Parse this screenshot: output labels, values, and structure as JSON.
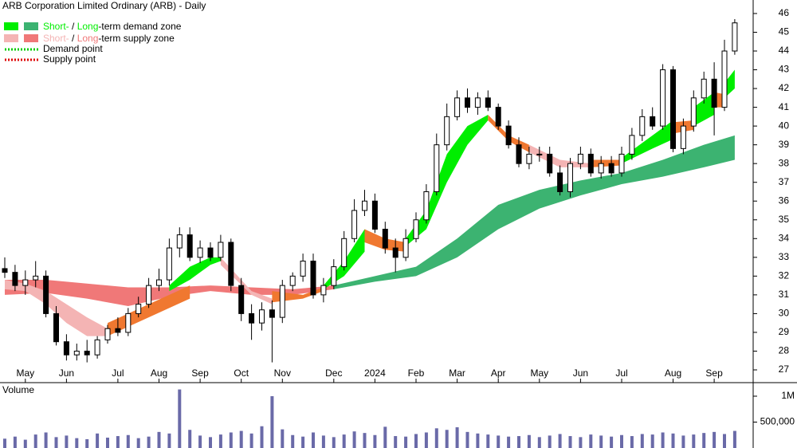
{
  "chart_data": {
    "type": "candlestick",
    "title": "ARB Corporation Limited Ordinary (ARB) - Daily",
    "legend": {
      "demand": {
        "short": "Short-",
        "sep": " / ",
        "long": "Long",
        "rest": "-term demand zone",
        "short_color": "#00ee00",
        "long_color": "#3cb371"
      },
      "supply": {
        "short": "Short-",
        "sep": " / ",
        "long": "Long",
        "rest": "-term supply zone",
        "short_color": "#f4b4b4",
        "long_color": "#f07878"
      },
      "demand_point": {
        "label": "Demand point",
        "color": "#00cc00"
      },
      "supply_point": {
        "label": "Supply point",
        "color": "#dd0000"
      }
    },
    "categories": [
      null,
      null,
      "May",
      null,
      null,
      null,
      "Jun",
      null,
      null,
      null,
      null,
      "Jul",
      null,
      null,
      null,
      "Aug",
      null,
      null,
      null,
      "Sep",
      null,
      null,
      null,
      "Oct",
      null,
      null,
      null,
      "Nov",
      null,
      null,
      null,
      null,
      "Dec",
      null,
      null,
      null,
      "2024",
      null,
      null,
      null,
      "Feb",
      null,
      null,
      null,
      "Mar",
      null,
      null,
      null,
      "Apr",
      null,
      null,
      null,
      "May",
      null,
      null,
      null,
      "Jun",
      null,
      null,
      null,
      "Jul",
      null,
      null,
      null,
      null,
      "Aug",
      null,
      null,
      null,
      "Sep",
      null,
      null
    ],
    "open": [
      32.4,
      32.2,
      31.5,
      31.8,
      32.0,
      30.0,
      28.5,
      27.8,
      28.0,
      27.8,
      28.6,
      29.2,
      29.0,
      30.0,
      30.5,
      31.5,
      31.8,
      33.5,
      34.2,
      33.0,
      33.5,
      33.0,
      33.8,
      31.5,
      30.0,
      29.5,
      30.2,
      29.8,
      31.5,
      32.0,
      32.8,
      31.0,
      31.5,
      32.5,
      34.0,
      35.5,
      36.0,
      34.5,
      33.5,
      33.0,
      34.0,
      35.0,
      36.5,
      39.0,
      40.5,
      41.5,
      41.0,
      41.5,
      41.0,
      40.0,
      39.0,
      38.0,
      38.5,
      38.5,
      37.5,
      36.5,
      38.0,
      38.5,
      37.5,
      38.0,
      37.5,
      38.5,
      39.5,
      40.5,
      40.0,
      43.0,
      38.8,
      40.0,
      41.5,
      42.5,
      41.0,
      44.0
    ],
    "high": [
      33.0,
      32.6,
      32.3,
      32.8,
      32.3,
      30.4,
      28.9,
      28.4,
      28.6,
      28.8,
      29.4,
      29.8,
      30.3,
      30.9,
      31.9,
      32.4,
      34.0,
      34.6,
      34.6,
      33.9,
      33.8,
      34.2,
      34.0,
      31.9,
      30.5,
      30.6,
      30.7,
      31.8,
      32.2,
      33.2,
      33.2,
      31.9,
      32.9,
      34.4,
      36.1,
      36.6,
      36.4,
      34.9,
      34.0,
      34.5,
      35.4,
      36.9,
      39.6,
      41.2,
      41.9,
      42.0,
      41.8,
      41.9,
      41.2,
      40.3,
      39.4,
      38.9,
      38.9,
      38.9,
      37.9,
      38.3,
      38.9,
      38.8,
      38.4,
      38.4,
      38.9,
      39.9,
      40.9,
      41.0,
      43.3,
      43.2,
      40.4,
      41.9,
      42.9,
      43.4,
      44.6,
      45.7
    ],
    "low": [
      31.9,
      31.2,
      31.0,
      31.4,
      29.8,
      28.3,
      27.5,
      27.5,
      27.4,
      27.6,
      28.4,
      28.8,
      28.8,
      29.8,
      30.3,
      31.2,
      31.5,
      33.0,
      32.8,
      32.7,
      32.8,
      32.8,
      31.2,
      29.6,
      28.6,
      29.1,
      27.4,
      29.5,
      31.2,
      31.7,
      30.8,
      30.6,
      31.3,
      32.3,
      33.8,
      35.2,
      34.3,
      33.2,
      32.2,
      32.8,
      33.8,
      34.8,
      36.3,
      38.7,
      40.3,
      40.7,
      40.6,
      40.8,
      39.8,
      38.8,
      37.8,
      37.7,
      38.1,
      37.3,
      36.3,
      36.2,
      37.7,
      37.3,
      37.2,
      37.3,
      37.3,
      38.2,
      39.2,
      39.8,
      39.8,
      38.6,
      38.5,
      39.7,
      41.2,
      39.5,
      40.8,
      43.8
    ],
    "close": [
      32.2,
      31.5,
      31.8,
      32.0,
      30.0,
      28.5,
      27.8,
      28.0,
      27.8,
      28.6,
      29.2,
      29.0,
      30.0,
      30.5,
      31.5,
      31.8,
      33.5,
      34.2,
      33.0,
      33.5,
      33.0,
      33.8,
      31.5,
      30.0,
      29.5,
      30.2,
      29.8,
      31.5,
      32.0,
      32.8,
      31.0,
      31.5,
      32.5,
      34.0,
      35.5,
      36.0,
      34.5,
      33.5,
      33.0,
      34.0,
      35.0,
      36.5,
      39.0,
      40.5,
      41.5,
      41.0,
      41.5,
      41.0,
      40.0,
      39.0,
      38.0,
      38.5,
      38.5,
      37.5,
      36.5,
      38.0,
      38.5,
      37.5,
      38.0,
      37.5,
      38.5,
      39.5,
      40.5,
      40.0,
      43.0,
      38.8,
      40.0,
      41.5,
      42.5,
      41.0,
      44.0,
      45.5
    ],
    "ylim": [
      26.32,
      46.72
    ],
    "yticks": [
      27,
      28,
      29,
      30,
      31,
      32,
      33,
      34,
      35,
      36,
      37,
      38,
      39,
      40,
      41,
      42,
      43,
      44,
      45,
      46
    ],
    "zones": [
      {
        "color": "#f07878",
        "x": [
          0,
          4,
          8,
          12,
          16,
          20,
          24,
          28,
          32
        ],
        "upper": [
          31.8,
          31.8,
          31.6,
          31.4,
          31.4,
          31.5,
          31.4,
          31.3,
          31.5
        ],
        "lower": [
          31.0,
          31.1,
          30.8,
          30.4,
          30.9,
          31.2,
          31.0,
          31.0,
          31.3
        ]
      },
      {
        "color": "#3cb371",
        "x": [
          32,
          36,
          40,
          44,
          48,
          52,
          56,
          60,
          64,
          68,
          71
        ],
        "upper": [
          31.5,
          32.0,
          32.5,
          34.0,
          35.8,
          36.6,
          37.1,
          37.5,
          38.2,
          39.0,
          39.5
        ],
        "lower": [
          31.3,
          31.7,
          32.0,
          33.0,
          34.5,
          35.6,
          36.3,
          36.9,
          37.3,
          37.8,
          38.2
        ]
      },
      {
        "color": "#f4b4b4",
        "x": [
          0,
          2,
          4,
          6,
          8,
          10
        ],
        "upper": [
          31.8,
          31.6,
          31.2,
          30.5,
          29.8,
          29.2
        ],
        "lower": [
          31.3,
          31.2,
          30.5,
          29.5,
          28.8,
          28.8
        ]
      },
      {
        "color": "#f07830",
        "x": [
          10,
          14,
          18
        ],
        "upper": [
          29.5,
          30.5,
          31.5
        ],
        "lower": [
          28.8,
          29.8,
          30.8
        ]
      },
      {
        "color": "#00ee00",
        "x": [
          16,
          18,
          20,
          21
        ],
        "upper": [
          31.5,
          32.5,
          33.0,
          33.0
        ],
        "lower": [
          31.2,
          31.8,
          32.6,
          32.8
        ]
      },
      {
        "color": "#f4b4b4",
        "x": [
          21,
          24,
          26
        ],
        "upper": [
          33.0,
          31.2,
          30.8
        ],
        "lower": [
          32.6,
          31.0,
          30.5
        ]
      },
      {
        "color": "#f07830",
        "x": [
          26,
          29,
          31
        ],
        "upper": [
          31.2,
          31.0,
          31.4
        ],
        "lower": [
          30.6,
          30.8,
          31.2
        ]
      },
      {
        "color": "#00ee00",
        "x": [
          31,
          33,
          35
        ],
        "upper": [
          31.5,
          32.8,
          34.5
        ],
        "lower": [
          31.3,
          32.0,
          33.3
        ]
      },
      {
        "color": "#f07830",
        "x": [
          35,
          37,
          39
        ],
        "upper": [
          34.5,
          34.0,
          33.8
        ],
        "lower": [
          33.8,
          33.4,
          33.3
        ]
      },
      {
        "color": "#00ee00",
        "x": [
          39,
          41,
          43,
          45,
          47
        ],
        "upper": [
          34.0,
          35.5,
          38.5,
          40.0,
          40.6
        ],
        "lower": [
          33.6,
          34.5,
          37.0,
          39.0,
          40.3
        ]
      },
      {
        "color": "#f07830",
        "x": [
          47,
          49,
          51
        ],
        "upper": [
          40.6,
          39.5,
          39.0
        ],
        "lower": [
          40.3,
          39.2,
          38.6
        ]
      },
      {
        "color": "#f4b4b4",
        "x": [
          51,
          54,
          57
        ],
        "upper": [
          39.0,
          38.2,
          38.0
        ],
        "lower": [
          38.6,
          37.8,
          37.8
        ]
      },
      {
        "color": "#f07830",
        "x": [
          57,
          60
        ],
        "upper": [
          38.2,
          38.2
        ],
        "lower": [
          37.8,
          37.9
        ]
      },
      {
        "color": "#00ee00",
        "x": [
          60,
          63,
          65
        ],
        "upper": [
          38.3,
          39.5,
          40.3
        ],
        "lower": [
          38.0,
          38.8,
          39.3
        ]
      },
      {
        "color": "#f07830",
        "x": [
          65,
          67
        ],
        "upper": [
          40.2,
          40.3
        ],
        "lower": [
          39.6,
          39.8
        ]
      },
      {
        "color": "#00ee00",
        "x": [
          67,
          69
        ],
        "upper": [
          41.0,
          41.8
        ],
        "lower": [
          40.0,
          40.6
        ]
      },
      {
        "color": "#f07830",
        "x": [
          69,
          70
        ],
        "upper": [
          41.8,
          41.7
        ],
        "lower": [
          41.0,
          41.0
        ]
      },
      {
        "color": "#00ee00",
        "x": [
          70,
          71
        ],
        "upper": [
          42.3,
          43.0
        ],
        "lower": [
          41.5,
          42.0
        ]
      }
    ],
    "volume": {
      "label": "Volume",
      "color": "#6a6aa8",
      "values": [
        180000,
        220000,
        160000,
        260000,
        300000,
        210000,
        240000,
        190000,
        170000,
        280000,
        200000,
        230000,
        250000,
        190000,
        220000,
        310000,
        280000,
        1130000,
        350000,
        240000,
        210000,
        260000,
        300000,
        330000,
        280000,
        420000,
        1000000,
        360000,
        250000,
        220000,
        300000,
        240000,
        210000,
        260000,
        320000,
        290000,
        250000,
        410000,
        230000,
        220000,
        270000,
        300000,
        380000,
        350000,
        400000,
        310000,
        280000,
        260000,
        240000,
        220000,
        230000,
        250000,
        210000,
        240000,
        270000,
        230000,
        210000,
        260000,
        240000,
        220000,
        250000,
        230000,
        270000,
        260000,
        300000,
        280000,
        240000,
        260000,
        290000,
        310000,
        270000,
        330000
      ],
      "ylim": [
        0,
        1200000
      ],
      "yticks": [
        {
          "value": 500000,
          "label": "500,000"
        },
        {
          "value": 1000000,
          "label": "1M"
        }
      ]
    }
  }
}
